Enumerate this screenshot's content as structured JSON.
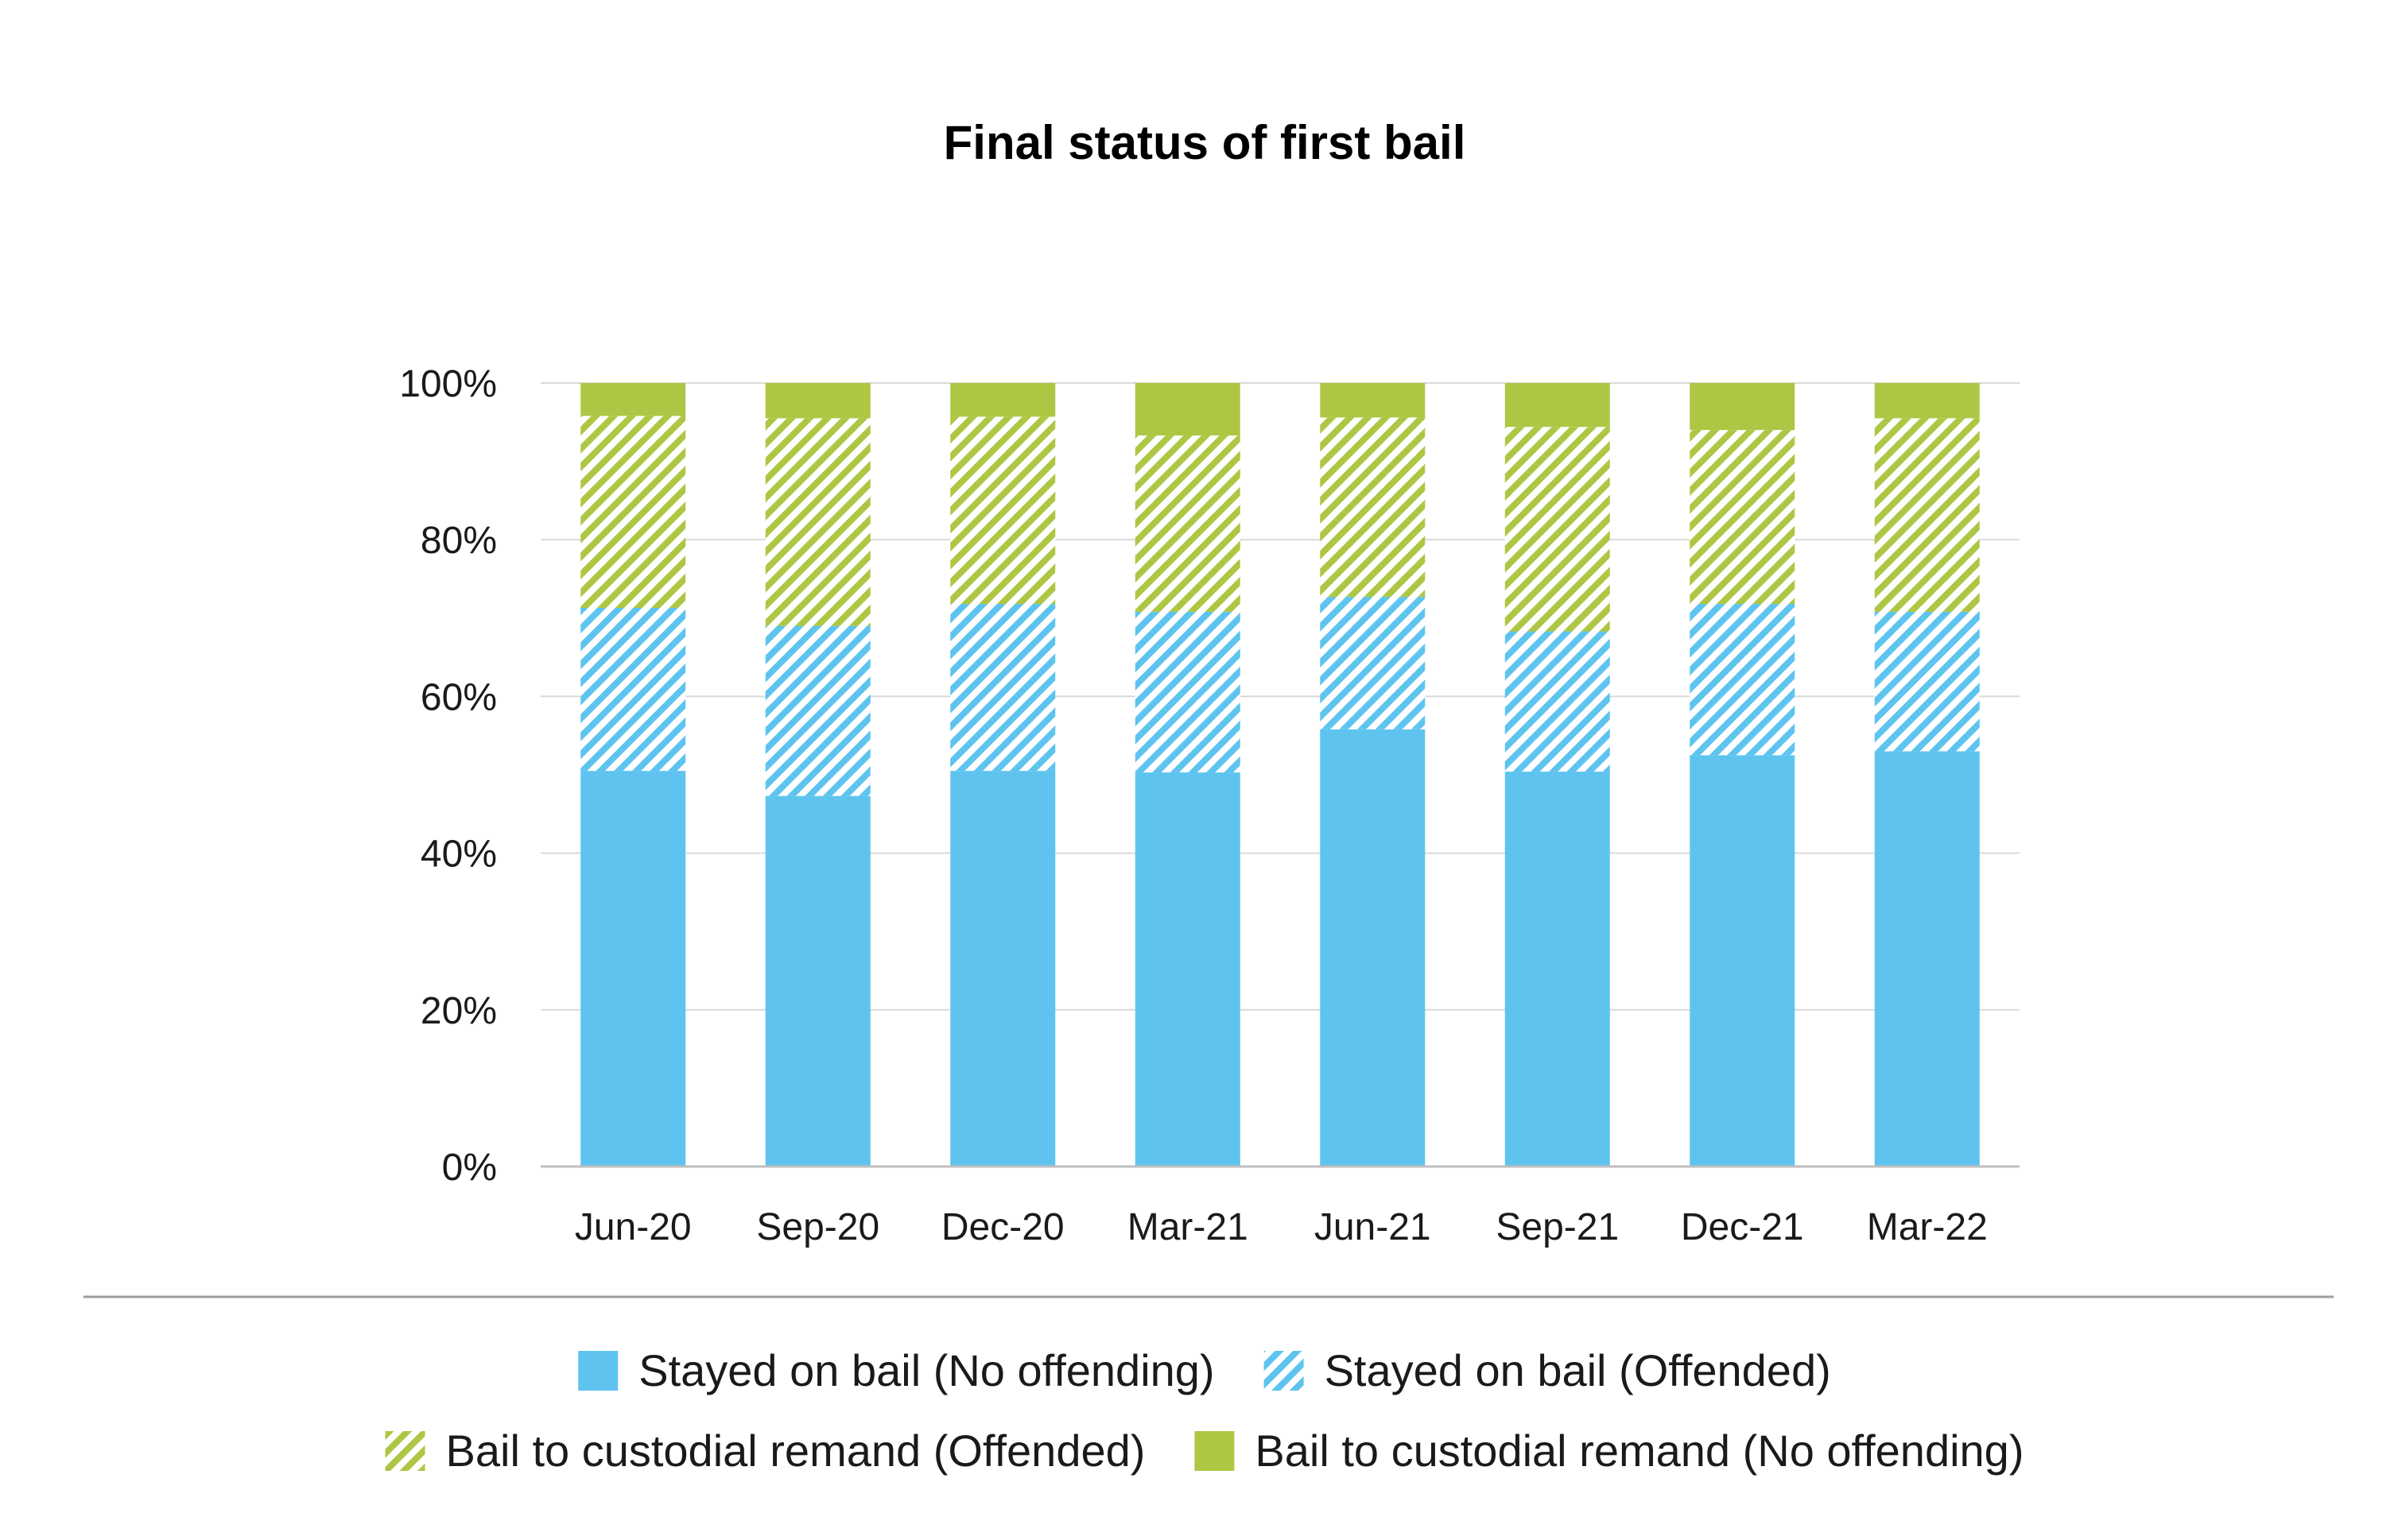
{
  "chart_data": {
    "type": "bar",
    "stacked": true,
    "title": "Final status of first bail",
    "xlabel": "",
    "ylabel": "",
    "categories": [
      "Jun-20",
      "Sep-20",
      "Dec-20",
      "Mar-21",
      "Jun-21",
      "Sep-21",
      "Dec-21",
      "Mar-22"
    ],
    "ylim": [
      0,
      100
    ],
    "yticks": [
      0,
      20,
      40,
      60,
      80,
      100
    ],
    "ytick_labels": [
      "0%",
      "20%",
      "40%",
      "60%",
      "80%",
      "100%"
    ],
    "grid": true,
    "legend_position": "bottom",
    "series": [
      {
        "name": "Stayed on bail (No offending)",
        "color": "#5ec4ef",
        "pattern": "solid",
        "values": [
          50.5,
          47.3,
          50.5,
          50.3,
          55.8,
          50.4,
          52.5,
          53.0
        ]
      },
      {
        "name": "Stayed on bail (Offended)",
        "color": "#5ec4ef",
        "pattern": "hatched",
        "values": [
          20.8,
          21.7,
          21.3,
          20.5,
          16.9,
          17.9,
          19.3,
          17.8
        ]
      },
      {
        "name": "Bail to custodial remand (Offended)",
        "color": "#adc744",
        "pattern": "hatched",
        "values": [
          24.5,
          26.5,
          23.9,
          22.5,
          22.9,
          26.1,
          22.2,
          24.7
        ]
      },
      {
        "name": "Bail to custodial remand (No offending)",
        "color": "#adc744",
        "pattern": "solid",
        "values": [
          4.2,
          4.5,
          4.3,
          6.7,
          4.4,
          5.6,
          6.0,
          4.5
        ]
      }
    ],
    "legend_rows": [
      [
        0,
        1
      ],
      [
        2,
        3
      ]
    ]
  }
}
